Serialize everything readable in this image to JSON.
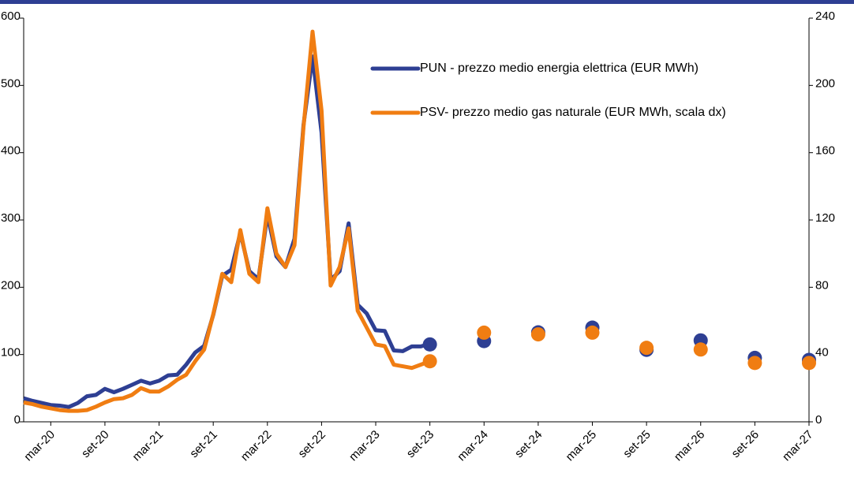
{
  "chart_data": {
    "type": "line",
    "categories": [
      null,
      null,
      null,
      "mar-20",
      null,
      null,
      null,
      null,
      null,
      "set-20",
      null,
      null,
      null,
      null,
      null,
      "mar-21",
      null,
      null,
      null,
      null,
      null,
      "set-21",
      null,
      null,
      null,
      null,
      null,
      "mar-22",
      null,
      null,
      null,
      null,
      null,
      "set-22",
      null,
      null,
      null,
      null,
      null,
      "mar-23",
      null,
      null,
      null,
      null,
      null,
      "set-23",
      null,
      null,
      null,
      null,
      null,
      "mar-24",
      null,
      null,
      null,
      null,
      null,
      "set-24",
      null,
      null,
      null,
      null,
      null,
      "mar-25",
      null,
      null,
      null,
      null,
      null,
      "set-25",
      null,
      null,
      null,
      null,
      null,
      "mar-26",
      null,
      null,
      null,
      null,
      null,
      "set-26",
      null,
      null,
      null,
      null,
      null,
      "mar-27"
    ],
    "series": [
      {
        "name": "PUN - prezzo medio energia elettrica (EUR MWh)",
        "color": "#2e3f93",
        "axis": "y",
        "values": [
          35,
          31,
          28,
          25,
          24,
          22,
          28,
          38,
          40,
          49,
          44,
          49,
          55,
          61,
          57,
          61,
          69,
          70,
          85,
          103,
          113,
          159,
          217,
          226,
          281,
          224,
          212,
          308,
          246,
          230,
          272,
          441,
          543,
          430,
          211,
          224,
          295,
          174,
          161,
          136,
          135,
          106,
          105,
          112,
          112,
          116,
          null,
          null,
          null,
          null,
          null,
          null,
          null,
          null,
          null,
          null,
          null,
          null,
          null,
          null,
          null,
          null,
          null,
          null,
          null,
          null,
          null,
          null,
          null,
          null,
          null,
          null,
          null,
          null,
          null,
          null,
          null,
          null,
          null,
          null,
          null,
          null,
          null,
          null,
          null,
          null,
          null,
          null
        ],
        "forecast": [
          null,
          null,
          null,
          null,
          null,
          null,
          null,
          null,
          null,
          null,
          null,
          null,
          null,
          null,
          null,
          null,
          null,
          null,
          null,
          null,
          null,
          null,
          null,
          null,
          null,
          null,
          null,
          null,
          null,
          null,
          null,
          null,
          null,
          null,
          null,
          null,
          null,
          null,
          null,
          null,
          null,
          null,
          null,
          null,
          null,
          115,
          null,
          null,
          null,
          null,
          null,
          120,
          null,
          null,
          null,
          null,
          null,
          133,
          null,
          null,
          null,
          null,
          null,
          140,
          null,
          null,
          null,
          null,
          null,
          107,
          null,
          null,
          null,
          null,
          null,
          121,
          null,
          null,
          null,
          null,
          null,
          95,
          null,
          null,
          null,
          null,
          null,
          92
        ]
      },
      {
        "name": "PSV-  prezzo medio gas naturale (EUR MWh, scala dx)",
        "color": "#f07d12",
        "axis": "y2",
        "values": [
          11.5,
          10.5,
          9,
          8,
          7,
          6.5,
          6.5,
          7,
          9,
          11.5,
          13.5,
          14,
          16,
          20,
          18,
          18,
          21,
          25,
          28,
          36,
          43,
          64,
          88,
          83,
          114,
          88,
          83,
          127,
          100,
          92,
          105,
          175,
          232,
          185,
          81,
          92,
          115,
          66,
          56,
          46,
          45,
          34,
          33,
          32,
          34,
          36,
          null,
          null,
          null,
          null,
          null,
          null,
          null,
          null,
          null,
          null,
          null,
          null,
          null,
          null,
          null,
          null,
          null,
          null,
          null,
          null,
          null,
          null,
          null,
          null,
          null,
          null,
          null,
          null,
          null,
          null,
          null,
          null,
          null,
          null,
          null,
          null,
          null,
          null,
          null,
          null,
          null,
          null
        ],
        "forecast": [
          null,
          null,
          null,
          null,
          null,
          null,
          null,
          null,
          null,
          null,
          null,
          null,
          null,
          null,
          null,
          null,
          null,
          null,
          null,
          null,
          null,
          null,
          null,
          null,
          null,
          null,
          null,
          null,
          null,
          null,
          null,
          null,
          null,
          null,
          null,
          null,
          null,
          null,
          null,
          null,
          null,
          null,
          null,
          null,
          null,
          36,
          null,
          null,
          null,
          null,
          null,
          53,
          null,
          null,
          null,
          null,
          null,
          52,
          null,
          null,
          null,
          null,
          null,
          53,
          null,
          null,
          null,
          null,
          null,
          44,
          null,
          null,
          null,
          null,
          null,
          43,
          null,
          null,
          null,
          null,
          null,
          35,
          null,
          null,
          null,
          null,
          null,
          35
        ]
      }
    ],
    "ylim": [
      0,
      600
    ],
    "yticks": [
      0,
      100,
      200,
      300,
      400,
      500,
      600
    ],
    "y2lim": [
      0,
      240
    ],
    "y2ticks": [
      0,
      40,
      80,
      120,
      160,
      200,
      240
    ]
  }
}
